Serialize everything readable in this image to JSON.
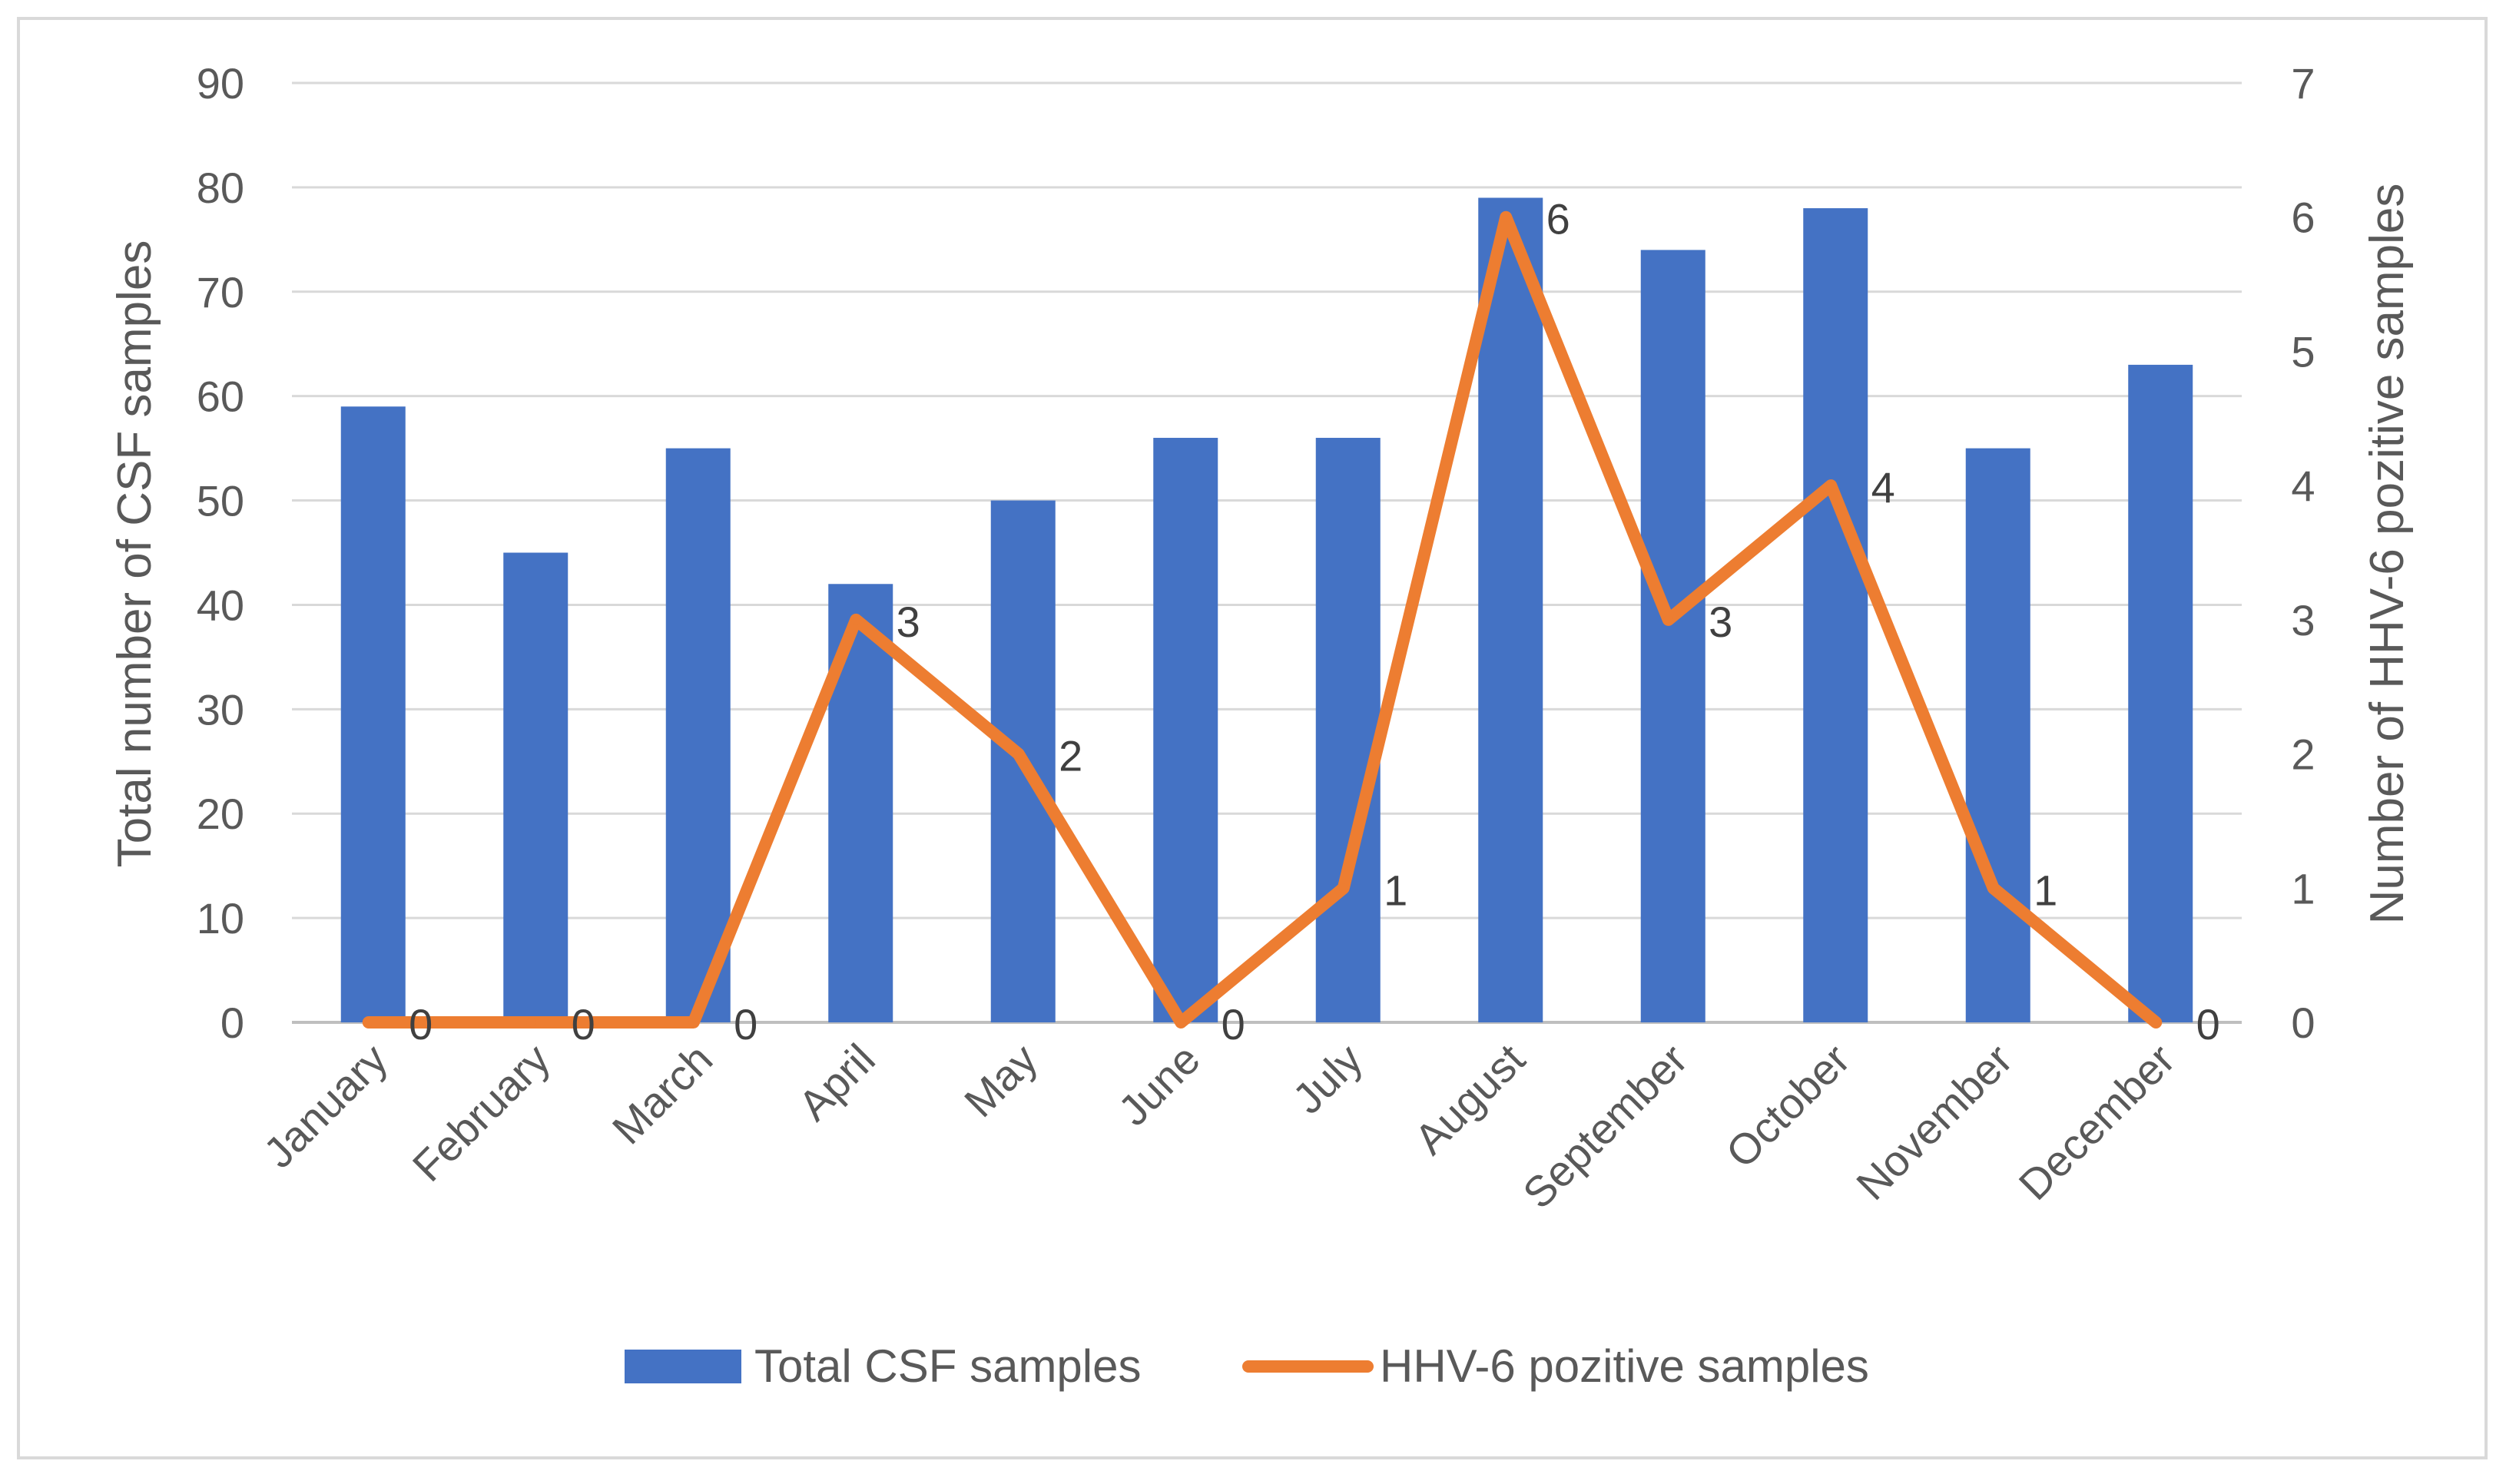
{
  "chart_data": {
    "type": "bar+line",
    "title": "",
    "categories": [
      "January",
      "February",
      "March",
      "April",
      "May",
      "June",
      "July",
      "August",
      "September",
      "October",
      "November",
      "December"
    ],
    "series": [
      {
        "name": "Total CSF samples",
        "type": "bar",
        "axis": "left",
        "color": "#4472C4",
        "values": [
          59,
          45,
          55,
          42,
          50,
          56,
          56,
          79,
          74,
          78,
          55,
          63
        ]
      },
      {
        "name": "HHV-6 pozitive samples",
        "type": "line",
        "axis": "right",
        "color": "#ED7D31",
        "values": [
          0,
          0,
          0,
          3,
          2,
          0,
          1,
          6,
          3,
          4,
          1,
          0
        ],
        "data_labels": [
          "0",
          "0",
          "0",
          "3",
          "2",
          "0",
          "1",
          "6",
          "3",
          "4",
          "1",
          "0"
        ]
      }
    ],
    "ylabel_left": "Total number of CSF samples",
    "ylabel_right": "Number of HHV-6 pozitive samples",
    "ylim_left": [
      0,
      90
    ],
    "yticks_left": [
      "0",
      "10",
      "20",
      "30",
      "40",
      "50",
      "60",
      "70",
      "80",
      "90"
    ],
    "ylim_right": [
      0,
      7
    ],
    "yticks_right": [
      "0",
      "1",
      "2",
      "3",
      "4",
      "5",
      "6",
      "7"
    ],
    "grid": true,
    "legend": {
      "placement": "bottom",
      "entries": [
        "Total CSF samples",
        "HHV-6 pozitive samples"
      ]
    }
  }
}
